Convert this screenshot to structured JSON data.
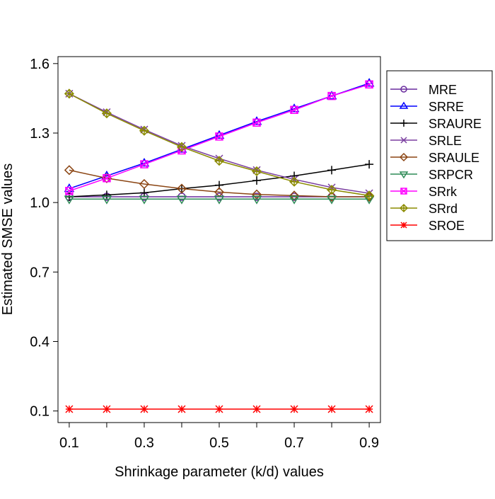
{
  "chart_data": {
    "type": "line",
    "title": "",
    "xlabel": "Shrinkage parameter (k/d) values",
    "ylabel": "Estimated SMSE values",
    "x": [
      0.1,
      0.2,
      0.3,
      0.4,
      0.5,
      0.6,
      0.7,
      0.8,
      0.9
    ],
    "xticks": [
      "0.1",
      "0.3",
      "0.5",
      "0.7",
      "0.9"
    ],
    "xtick_values": [
      0.1,
      0.3,
      0.5,
      0.7,
      0.9
    ],
    "xlim": [
      0.07,
      0.93
    ],
    "yticks": [
      "0.1",
      "0.4",
      "0.7",
      "1.0",
      "1.3",
      "1.6"
    ],
    "ytick_values": [
      0.1,
      0.4,
      0.7,
      1.0,
      1.3,
      1.6
    ],
    "ylim": [
      0.05,
      1.63
    ],
    "grid": false,
    "legend_position": "right",
    "series": [
      {
        "name": "MRE",
        "color": "#6a2c9e",
        "marker": "circle",
        "values": [
          1.025,
          1.025,
          1.025,
          1.025,
          1.025,
          1.025,
          1.025,
          1.025,
          1.025
        ]
      },
      {
        "name": "SRRE",
        "color": "#0000ff",
        "marker": "triangle-up",
        "values": [
          1.06,
          1.115,
          1.17,
          1.23,
          1.29,
          1.35,
          1.405,
          1.46,
          1.515
        ]
      },
      {
        "name": "SRAURE",
        "color": "#000000",
        "marker": "plus",
        "values": [
          1.025,
          1.033,
          1.042,
          1.06,
          1.075,
          1.095,
          1.115,
          1.14,
          1.165
        ]
      },
      {
        "name": "SRLE",
        "color": "#7b3fa0",
        "marker": "cross",
        "values": [
          1.47,
          1.39,
          1.315,
          1.245,
          1.19,
          1.14,
          1.1,
          1.065,
          1.04
        ]
      },
      {
        "name": "SRAULE",
        "color": "#8b4513",
        "marker": "diamond",
        "values": [
          1.14,
          1.105,
          1.08,
          1.06,
          1.045,
          1.035,
          1.03,
          1.025,
          1.025
        ]
      },
      {
        "name": "SRPCR",
        "color": "#2e8b57",
        "marker": "triangle-down",
        "values": [
          1.015,
          1.015,
          1.015,
          1.015,
          1.015,
          1.015,
          1.015,
          1.015,
          1.015
        ]
      },
      {
        "name": "SRrk",
        "color": "#ff00ff",
        "marker": "square-x",
        "values": [
          1.05,
          1.105,
          1.165,
          1.225,
          1.285,
          1.345,
          1.4,
          1.46,
          1.51
        ]
      },
      {
        "name": "SRrd",
        "color": "#8b8b00",
        "marker": "diamond-plus",
        "values": [
          1.47,
          1.385,
          1.31,
          1.24,
          1.18,
          1.135,
          1.09,
          1.055,
          1.03
        ]
      },
      {
        "name": "SROE",
        "color": "#ff0000",
        "marker": "asterisk",
        "values": [
          0.108,
          0.108,
          0.108,
          0.108,
          0.108,
          0.108,
          0.108,
          0.108,
          0.108
        ]
      }
    ]
  }
}
